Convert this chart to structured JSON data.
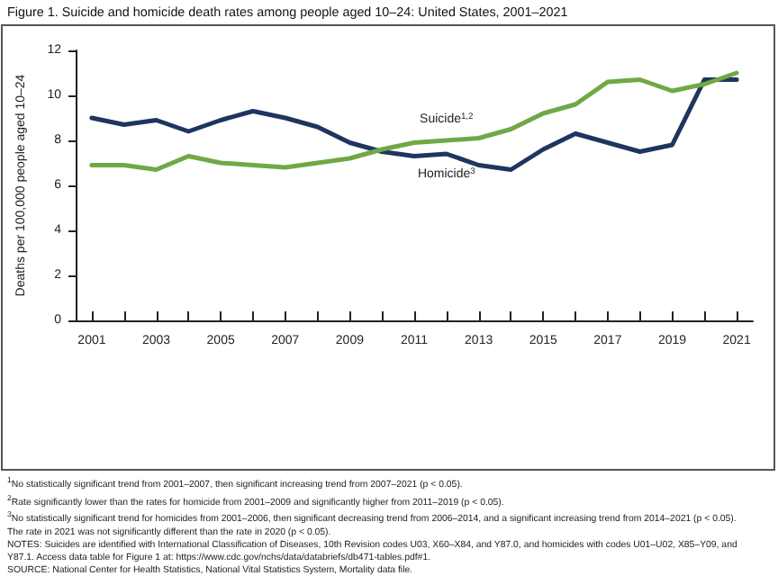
{
  "chart_data": {
    "type": "line",
    "title": "Figure 1. Suicide and homicide death rates among people aged 10–24: United States, 2001–2021",
    "ylabel": "Deaths per 100,000 people aged 10–24",
    "categories": [
      "2001",
      null,
      "2003",
      null,
      "2005",
      null,
      "2007",
      null,
      "2009",
      null,
      "2011",
      null,
      "2013",
      null,
      "2015",
      null,
      "2017",
      null,
      "2019",
      null,
      "2021"
    ],
    "series": [
      {
        "name": "Homicide$^{3}$",
        "color": "#1f3560",
        "values": [
          9.0,
          8.7,
          8.9,
          8.4,
          8.9,
          9.3,
          9.0,
          8.6,
          7.9,
          7.5,
          7.3,
          7.4,
          6.9,
          6.7,
          7.6,
          8.3,
          7.9,
          7.5,
          7.8,
          10.7,
          10.7
        ]
      },
      {
        "name": "Suicide$^{1,2}$",
        "color": "#6fa845",
        "values": [
          6.9,
          6.9,
          6.7,
          7.3,
          7.0,
          6.9,
          6.8,
          7.0,
          7.2,
          7.6,
          7.9,
          8.0,
          8.1,
          8.5,
          9.2,
          9.6,
          10.6,
          10.7,
          10.2,
          10.5,
          11.0
        ]
      }
    ],
    "ylim": [
      0,
      12
    ],
    "yticks": [
      0,
      2,
      4,
      6,
      8,
      10,
      12
    ],
    "grid": false,
    "legend": false,
    "marker": "none",
    "line_style": "solid",
    "annotations": [
      "$^{1}$No statistically significant trend from 2001–2007, then significant increasing trend from 2007–2021 (p < 0.05).",
      "$^{2}$Rate significantly lower than the rates for homicide from 2001–2009 and significantly higher from 2011–2019 (p < 0.05).",
      "$^{3}$No statistically significant trend for homicides from 2001–2006, then significant decreasing trend from 2006–2014, and a significant increasing trend from 2014–2021 (p < 0.05). The rate in 2021 was not significantly different than the rate in 2020 (p < 0.05).",
      "NOTES: Suicides are identified with International Classification of Diseases, 10th Revision codes U03, X60–X84, and Y87.0, and homicides with codes U01–U02, X85–Y09, and Y87.1. Access data table for Figure 1 at: https://www.cdc.gov/nchs/data/databriefs/db471-tables.pdf#1.",
      "SOURCE: National Center for Health Statistics, National Vital Statistics System, Mortality data file."
    ]
  }
}
